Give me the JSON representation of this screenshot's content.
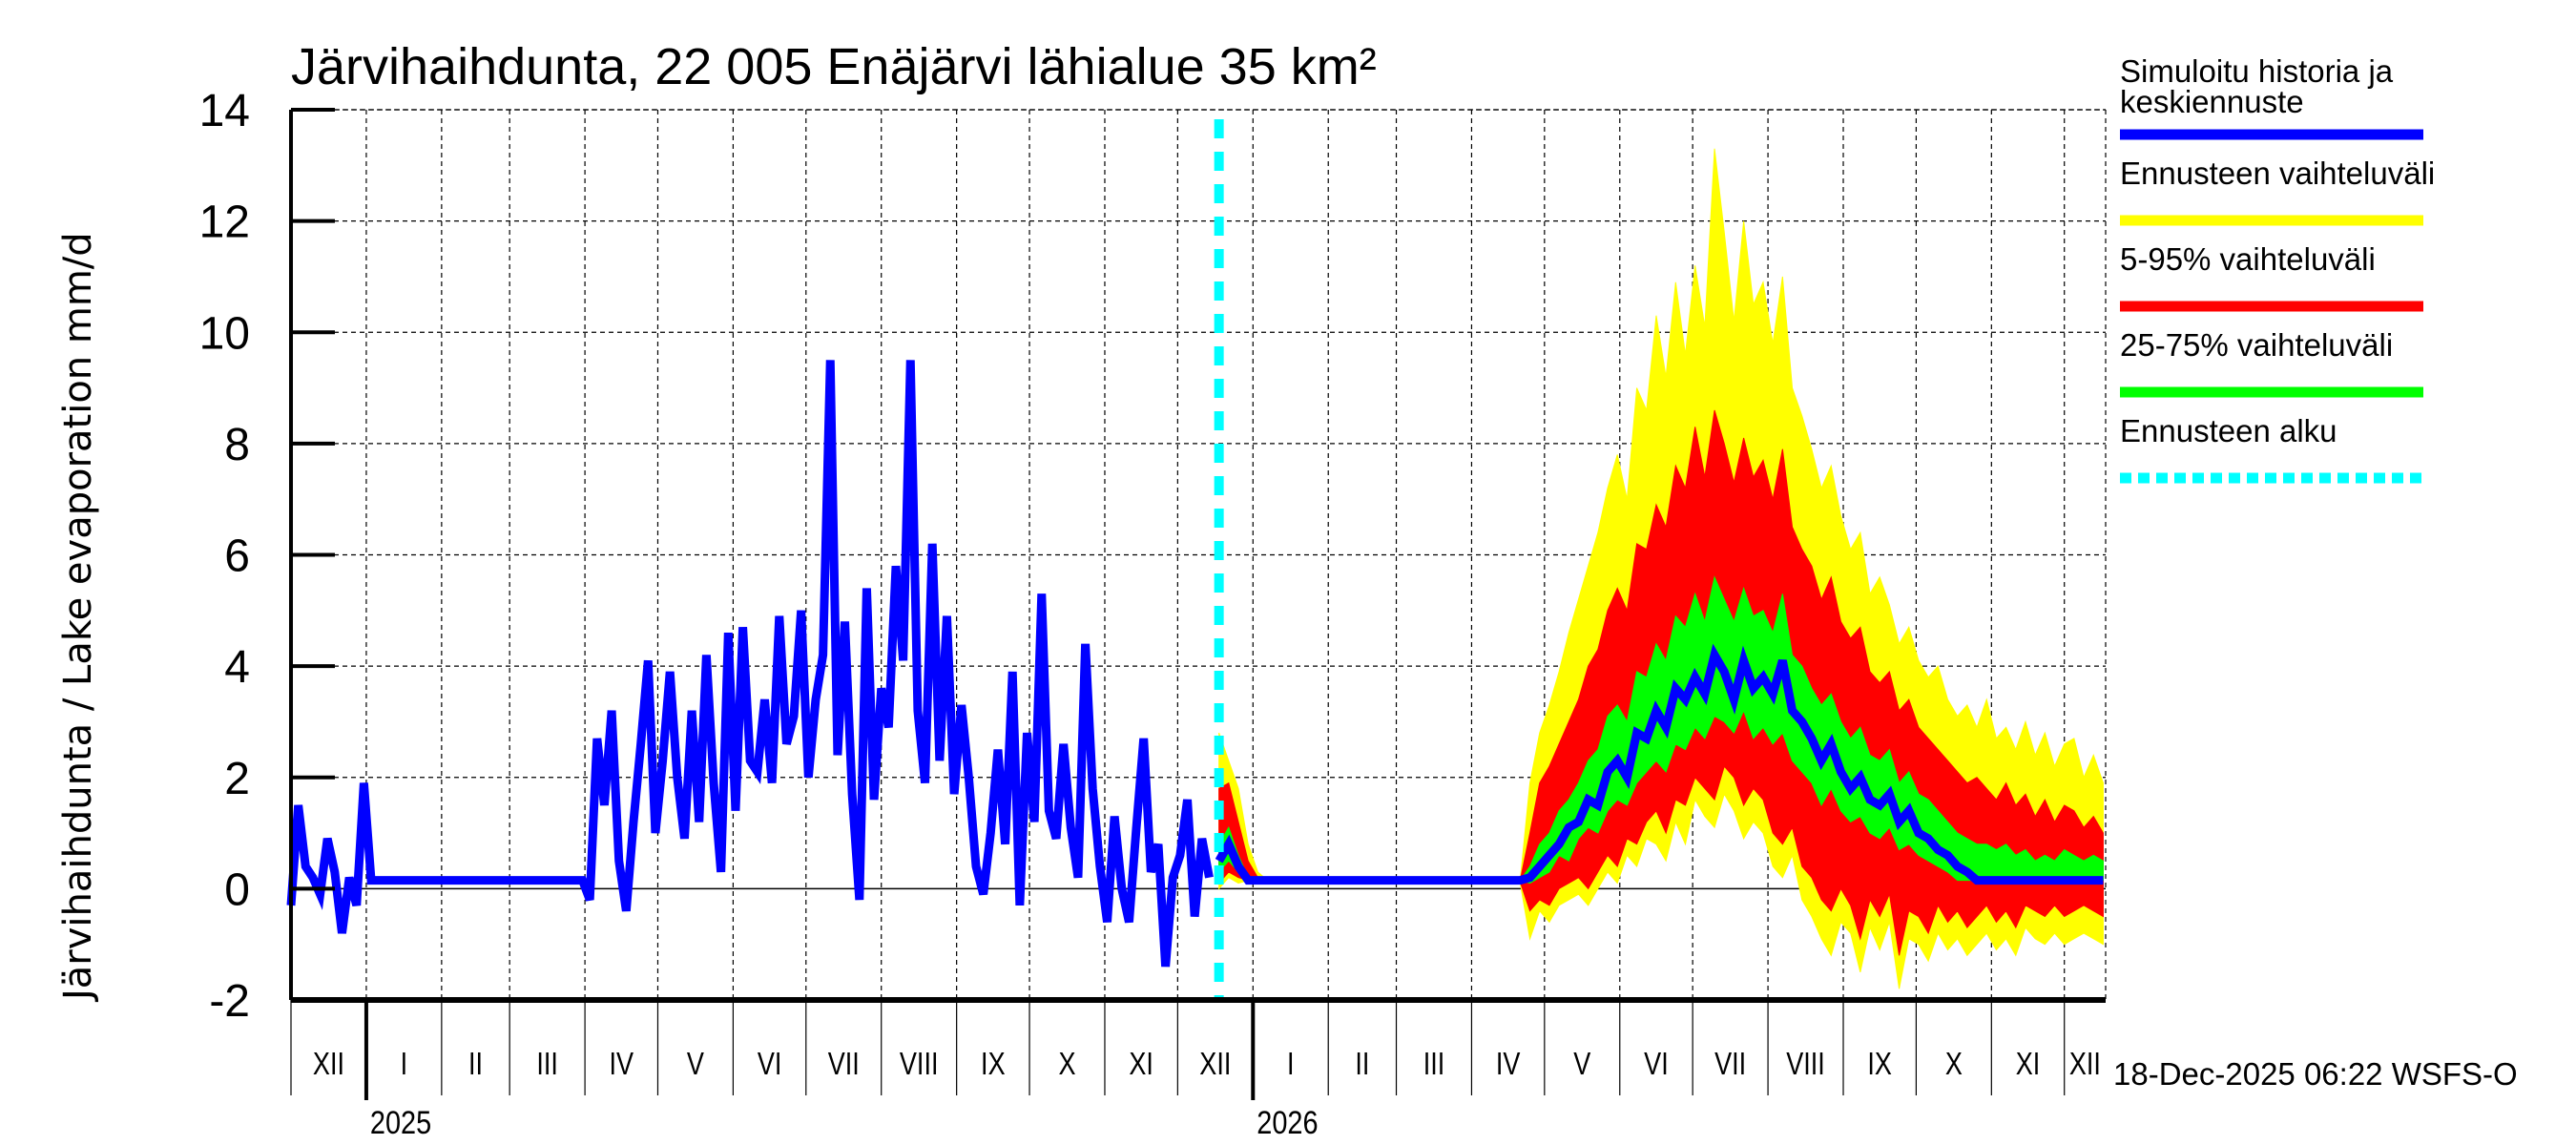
{
  "chart_data": {
    "type": "area",
    "title": "Järvihaihdunta, 22 005 Enäjärvi lähialue 35 km²",
    "ylabel": "Järvihaihdunta / Lake evaporation   mm/d",
    "ylim": [
      -2,
      14
    ],
    "yticks": [
      -2,
      0,
      2,
      4,
      6,
      8,
      10,
      12,
      14
    ],
    "ytick_labels": [
      "-2",
      "0",
      "2",
      "4",
      "6",
      "8",
      "10",
      "12",
      "14"
    ],
    "grid": true,
    "x_start": "2024-12-01",
    "x_end": "2026-12-18",
    "forecast_start": "2025-12-18",
    "month_labels": [
      "XII",
      "I",
      "II",
      "III",
      "IV",
      "V",
      "VI",
      "VII",
      "VIII",
      "IX",
      "X",
      "XI",
      "XII",
      "I",
      "II",
      "III",
      "IV",
      "V",
      "VI",
      "VII",
      "VIII",
      "IX",
      "X",
      "XI",
      "XII"
    ],
    "month_starts": [
      "2024-12-01",
      "2025-01-01",
      "2025-02-01",
      "2025-03-01",
      "2025-04-01",
      "2025-05-01",
      "2025-06-01",
      "2025-07-01",
      "2025-08-01",
      "2025-09-01",
      "2025-10-01",
      "2025-11-01",
      "2025-12-01",
      "2026-01-01",
      "2026-02-01",
      "2026-03-01",
      "2026-04-01",
      "2026-05-01",
      "2026-06-01",
      "2026-07-01",
      "2026-08-01",
      "2026-09-01",
      "2026-10-01",
      "2026-11-01",
      "2026-12-01"
    ],
    "year_labels": [
      {
        "label": "2025",
        "date": "2025-01-01"
      },
      {
        "label": "2026",
        "date": "2026-01-01"
      }
    ],
    "history_step_days": 3,
    "history": [
      -0.3,
      1.5,
      0.4,
      0.2,
      -0.1,
      0.9,
      0.3,
      -0.8,
      0.2,
      -0.3,
      1.9,
      0.15,
      0.15,
      0.15,
      0.15,
      0.15,
      0.15,
      0.15,
      0.15,
      0.15,
      0.15,
      0.15,
      0.15,
      0.15,
      0.15,
      0.15,
      0.15,
      0.15,
      0.15,
      0.15,
      0.15,
      0.15,
      0.15,
      0.15,
      0.15,
      0.15,
      0.15,
      0.15,
      0.15,
      0.15,
      0.15,
      -0.2,
      2.7,
      1.5,
      3.2,
      0.5,
      -0.4,
      1.2,
      2.6,
      4.1,
      1.0,
      2.3,
      3.9,
      2.0,
      0.9,
      3.2,
      1.2,
      4.2,
      1.9,
      0.3,
      4.6,
      1.4,
      4.7,
      2.3,
      2.1,
      3.4,
      1.9,
      4.9,
      2.6,
      3.1,
      5.0,
      2.0,
      3.4,
      4.2,
      9.5,
      2.4,
      4.8,
      1.7,
      -0.2,
      5.4,
      1.6,
      3.6,
      2.9,
      5.8,
      4.1,
      9.5,
      3.2,
      1.9,
      6.2,
      2.3,
      4.9,
      1.7,
      3.3,
      2.0,
      0.4,
      -0.1,
      1.0,
      2.5,
      0.8,
      3.9,
      -0.3,
      2.8,
      1.2,
      5.3,
      1.4,
      0.9,
      2.6,
      1.1,
      0.2,
      4.4,
      1.8,
      0.4,
      -0.6,
      1.3,
      0.0,
      -0.6,
      1.1,
      2.7,
      0.3,
      0.8,
      -1.4,
      0.2,
      0.6,
      1.6,
      -0.5,
      0.9,
      0.2
    ],
    "forecast_step_days": 4,
    "forecast": {
      "min": [
        0.0,
        0.2,
        0.1,
        0.15,
        0.1,
        0.1,
        0.1,
        0.1,
        0.1,
        0.1,
        0.1,
        0.1,
        0.1,
        0.1,
        0.1,
        0.1,
        0.1,
        0.1,
        0.1,
        0.1,
        0.1,
        0.1,
        0.1,
        0.1,
        0.1,
        0.1,
        0.1,
        0.1,
        0.1,
        0.1,
        0.1,
        0.1,
        -0.9,
        -0.4,
        -0.6,
        -0.3,
        -0.2,
        -0.1,
        -0.3,
        0.0,
        0.3,
        0.1,
        0.6,
        0.4,
        0.9,
        0.8,
        0.5,
        1.2,
        0.8,
        1.6,
        1.3,
        1.1,
        1.7,
        1.4,
        0.9,
        1.2,
        1.0,
        0.4,
        0.2,
        0.6,
        -0.2,
        -0.5,
        -0.9,
        -1.2,
        -0.6,
        -0.8,
        -1.5,
        -0.7,
        -1.1,
        -0.6,
        -1.8,
        -0.9,
        -1.0,
        -1.3,
        -0.8,
        -1.1,
        -0.9,
        -1.2,
        -1.0,
        -0.8,
        -1.1,
        -0.9,
        -1.2,
        -0.7,
        -0.9,
        -1.0,
        -0.8,
        -1.0,
        -0.9,
        -0.8,
        -0.9,
        -1.0
      ],
      "p5": [
        0.1,
        0.3,
        0.2,
        0.15,
        0.12,
        0.12,
        0.12,
        0.12,
        0.12,
        0.12,
        0.12,
        0.12,
        0.12,
        0.12,
        0.12,
        0.12,
        0.12,
        0.12,
        0.12,
        0.12,
        0.12,
        0.12,
        0.12,
        0.12,
        0.12,
        0.12,
        0.12,
        0.12,
        0.12,
        0.12,
        0.12,
        0.12,
        -0.4,
        -0.2,
        -0.3,
        0.0,
        0.1,
        0.2,
        0.0,
        0.3,
        0.6,
        0.4,
        0.9,
        0.8,
        1.2,
        1.4,
        1.0,
        1.6,
        1.5,
        2.0,
        1.8,
        1.6,
        2.2,
        2.0,
        1.5,
        1.8,
        1.6,
        1.0,
        0.8,
        1.1,
        0.4,
        0.2,
        -0.2,
        -0.4,
        0.0,
        -0.3,
        -0.9,
        -0.2,
        -0.5,
        -0.1,
        -1.2,
        -0.4,
        -0.5,
        -0.8,
        -0.3,
        -0.6,
        -0.4,
        -0.7,
        -0.5,
        -0.3,
        -0.6,
        -0.4,
        -0.7,
        -0.3,
        -0.4,
        -0.5,
        -0.3,
        -0.5,
        -0.4,
        -0.3,
        -0.4,
        -0.5
      ],
      "p25": [
        0.3,
        0.5,
        0.3,
        0.15,
        0.15,
        0.15,
        0.15,
        0.15,
        0.15,
        0.15,
        0.15,
        0.15,
        0.15,
        0.15,
        0.15,
        0.15,
        0.15,
        0.15,
        0.15,
        0.15,
        0.15,
        0.15,
        0.15,
        0.15,
        0.15,
        0.15,
        0.15,
        0.15,
        0.15,
        0.15,
        0.15,
        0.15,
        0.1,
        0.2,
        0.3,
        0.6,
        0.5,
        0.9,
        1.1,
        1.0,
        1.4,
        1.6,
        1.5,
        1.9,
        2.1,
        2.3,
        2.1,
        2.6,
        2.5,
        2.9,
        2.7,
        3.1,
        3.0,
        2.8,
        3.2,
        2.7,
        2.9,
        2.6,
        2.8,
        2.3,
        2.1,
        1.9,
        1.5,
        1.8,
        1.4,
        1.2,
        1.3,
        1.0,
        0.9,
        1.1,
        0.7,
        0.8,
        0.6,
        0.5,
        0.4,
        0.3,
        0.15,
        0.15,
        0.15,
        0.15,
        0.15,
        0.15,
        0.15,
        0.15,
        0.15,
        0.15,
        0.15,
        0.15,
        0.15,
        0.15,
        0.15,
        0.15
      ],
      "median": [
        0.5,
        0.8,
        0.4,
        0.15,
        0.15,
        0.15,
        0.15,
        0.15,
        0.15,
        0.15,
        0.15,
        0.15,
        0.15,
        0.15,
        0.15,
        0.15,
        0.15,
        0.15,
        0.15,
        0.15,
        0.15,
        0.15,
        0.15,
        0.15,
        0.15,
        0.15,
        0.15,
        0.15,
        0.15,
        0.15,
        0.15,
        0.15,
        0.2,
        0.4,
        0.6,
        0.8,
        1.1,
        1.2,
        1.6,
        1.5,
        2.1,
        2.3,
        2.0,
        2.8,
        2.7,
        3.2,
        2.9,
        3.6,
        3.4,
        3.8,
        3.5,
        4.2,
        3.9,
        3.4,
        4.1,
        3.6,
        3.8,
        3.5,
        4.1,
        3.2,
        3.0,
        2.7,
        2.3,
        2.6,
        2.1,
        1.8,
        2.0,
        1.6,
        1.5,
        1.7,
        1.2,
        1.4,
        1.0,
        0.9,
        0.7,
        0.6,
        0.4,
        0.3,
        0.15,
        0.15,
        0.15,
        0.15,
        0.15,
        0.15,
        0.15,
        0.15,
        0.15,
        0.15,
        0.15,
        0.15,
        0.15,
        0.15
      ],
      "p75": [
        0.8,
        1.1,
        0.6,
        0.2,
        0.15,
        0.15,
        0.15,
        0.15,
        0.15,
        0.15,
        0.15,
        0.15,
        0.15,
        0.15,
        0.15,
        0.15,
        0.15,
        0.15,
        0.15,
        0.15,
        0.15,
        0.15,
        0.15,
        0.15,
        0.15,
        0.15,
        0.15,
        0.15,
        0.15,
        0.15,
        0.15,
        0.15,
        0.4,
        0.8,
        1.0,
        1.4,
        1.6,
        1.9,
        2.3,
        2.5,
        3.1,
        3.3,
        3.0,
        3.9,
        3.8,
        4.4,
        4.1,
        4.9,
        4.7,
        5.3,
        4.8,
        5.6,
        5.2,
        4.8,
        5.4,
        4.9,
        5.0,
        4.6,
        5.3,
        4.2,
        4.0,
        3.6,
        3.3,
        3.5,
        3.0,
        2.7,
        2.9,
        2.4,
        2.3,
        2.5,
        1.9,
        2.1,
        1.7,
        1.6,
        1.4,
        1.2,
        1.0,
        0.9,
        0.8,
        0.8,
        0.7,
        0.8,
        0.6,
        0.7,
        0.5,
        0.6,
        0.5,
        0.7,
        0.6,
        0.5,
        0.6,
        0.5
      ],
      "p95": [
        1.8,
        1.9,
        1.2,
        0.5,
        0.2,
        0.15,
        0.15,
        0.15,
        0.15,
        0.15,
        0.15,
        0.15,
        0.15,
        0.15,
        0.15,
        0.15,
        0.15,
        0.15,
        0.15,
        0.15,
        0.15,
        0.15,
        0.15,
        0.15,
        0.15,
        0.15,
        0.15,
        0.15,
        0.15,
        0.15,
        0.15,
        0.15,
        1.0,
        1.9,
        2.2,
        2.6,
        3.0,
        3.4,
        4.0,
        4.3,
        5.0,
        5.4,
        5.0,
        6.2,
        6.1,
        6.9,
        6.5,
        7.6,
        7.2,
        8.3,
        7.4,
        8.6,
        8.0,
        7.3,
        8.1,
        7.4,
        7.7,
        7.0,
        7.9,
        6.5,
        6.1,
        5.8,
        5.2,
        5.6,
        4.8,
        4.5,
        4.7,
        3.9,
        3.7,
        3.9,
        3.2,
        3.4,
        2.9,
        2.7,
        2.5,
        2.3,
        2.1,
        1.9,
        2.0,
        1.8,
        1.6,
        1.9,
        1.5,
        1.7,
        1.3,
        1.6,
        1.2,
        1.5,
        1.4,
        1.1,
        1.3,
        1.0
      ],
      "max": [
        2.8,
        2.3,
        1.8,
        0.8,
        0.3,
        0.15,
        0.15,
        0.15,
        0.15,
        0.15,
        0.15,
        0.15,
        0.15,
        0.15,
        0.15,
        0.15,
        0.15,
        0.15,
        0.15,
        0.15,
        0.15,
        0.15,
        0.15,
        0.15,
        0.15,
        0.15,
        0.15,
        0.15,
        0.15,
        0.15,
        0.15,
        0.15,
        1.9,
        2.8,
        3.3,
        3.9,
        4.6,
        5.2,
        5.8,
        6.4,
        7.2,
        7.8,
        7.0,
        9.0,
        8.6,
        10.3,
        9.2,
        10.9,
        9.6,
        11.2,
        10.1,
        13.3,
        11.8,
        10.2,
        12.0,
        10.5,
        10.9,
        9.8,
        11.0,
        9.0,
        8.5,
        7.9,
        7.2,
        7.6,
        6.7,
        6.1,
        6.4,
        5.3,
        5.6,
        5.1,
        4.4,
        4.7,
        4.1,
        3.8,
        4.0,
        3.4,
        3.1,
        3.3,
        2.9,
        3.4,
        2.7,
        2.9,
        2.5,
        3.0,
        2.4,
        2.8,
        2.2,
        2.6,
        2.7,
        2.0,
        2.4,
        1.9
      ]
    },
    "series": [
      {
        "name": "Simuloitu historia ja keskiennuste",
        "color": "#0000ff"
      },
      {
        "name": "Ennusteen vaihteluväli",
        "color": "#ffff00"
      },
      {
        "name": "5-95% vaihteluväli",
        "color": "#ff0000"
      },
      {
        "name": "25-75% vaihteluväli",
        "color": "#00ff00"
      },
      {
        "name": "Ennusteen alku",
        "color": "#00ffff"
      }
    ],
    "legend": {
      "placement": "right",
      "entries": [
        {
          "line1": "Simuloitu historia ja",
          "line2": "keskiennuste",
          "color": "#0000ff",
          "style": "solid"
        },
        {
          "line1": "Ennusteen vaihteluväli",
          "line2": "",
          "color": "#ffff00",
          "style": "solid"
        },
        {
          "line1": "5-95% vaihteluväli",
          "line2": "",
          "color": "#ff0000",
          "style": "solid"
        },
        {
          "line1": "25-75% vaihteluväli",
          "line2": "",
          "color": "#00ff00",
          "style": "solid"
        },
        {
          "line1": "Ennusteen alku",
          "line2": "",
          "color": "#00ffff",
          "style": "dotted"
        }
      ]
    },
    "timestamp": "18-Dec-2025 06:22 WSFS-O"
  }
}
